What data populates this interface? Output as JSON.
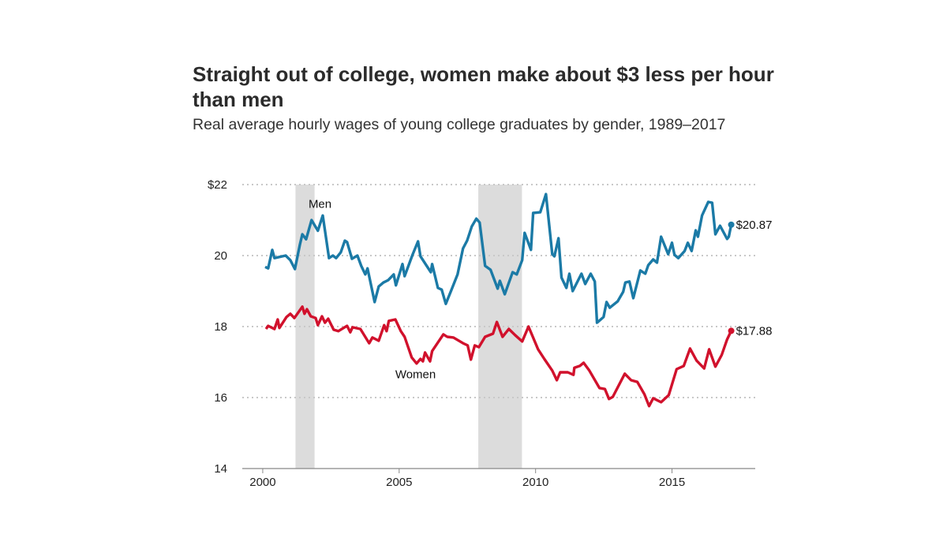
{
  "chart_data": {
    "type": "line",
    "title": "Straight out of college, women make about $3 less per hour than men",
    "subtitle": "Real average hourly wages of young college graduates by gender, 1989–2017",
    "xlabel": "",
    "ylabel": "",
    "xlim": [
      1999.25,
      2018.05
    ],
    "ylim": [
      14,
      22
    ],
    "x_ticks": [
      2000,
      2005,
      2010,
      2015
    ],
    "x_tick_labels": [
      "2000",
      "2005",
      "2010",
      "2015"
    ],
    "y_ticks": [
      14,
      16,
      18,
      20,
      22
    ],
    "y_tick_labels": [
      "14",
      "16",
      "18",
      "20",
      "$22"
    ],
    "grid": "horizontal dotted",
    "recessions": [
      [
        2001.2,
        2001.9
      ],
      [
        2007.9,
        2009.5
      ]
    ],
    "series": [
      {
        "name": "Men",
        "color": "#1b7aa6",
        "end_label": "$20.87",
        "points": [
          [
            2000.09,
            19.68
          ],
          [
            2000.2,
            19.64
          ],
          [
            2000.35,
            20.16
          ],
          [
            2000.43,
            19.93
          ],
          [
            2000.84,
            20.0
          ],
          [
            2001.01,
            19.87
          ],
          [
            2001.18,
            19.62
          ],
          [
            2001.36,
            20.31
          ],
          [
            2001.45,
            20.6
          ],
          [
            2001.59,
            20.46
          ],
          [
            2001.79,
            21.0
          ],
          [
            2002.02,
            20.7
          ],
          [
            2002.2,
            21.13
          ],
          [
            2002.43,
            19.93
          ],
          [
            2002.57,
            20.0
          ],
          [
            2002.69,
            19.93
          ],
          [
            2002.86,
            20.09
          ],
          [
            2003.01,
            20.42
          ],
          [
            2003.09,
            20.38
          ],
          [
            2003.27,
            19.91
          ],
          [
            2003.47,
            20.0
          ],
          [
            2003.61,
            19.71
          ],
          [
            2003.76,
            19.47
          ],
          [
            2003.84,
            19.64
          ],
          [
            2004.1,
            18.69
          ],
          [
            2004.25,
            19.13
          ],
          [
            2004.42,
            19.24
          ],
          [
            2004.6,
            19.31
          ],
          [
            2004.8,
            19.47
          ],
          [
            2004.88,
            19.16
          ],
          [
            2005.12,
            19.76
          ],
          [
            2005.2,
            19.42
          ],
          [
            2005.49,
            20.02
          ],
          [
            2005.69,
            20.4
          ],
          [
            2005.78,
            19.98
          ],
          [
            2006.16,
            19.53
          ],
          [
            2006.21,
            19.76
          ],
          [
            2006.42,
            19.09
          ],
          [
            2006.56,
            19.04
          ],
          [
            2006.71,
            18.64
          ],
          [
            2006.91,
            19.02
          ],
          [
            2007.14,
            19.47
          ],
          [
            2007.34,
            20.2
          ],
          [
            2007.49,
            20.42
          ],
          [
            2007.66,
            20.82
          ],
          [
            2007.83,
            21.04
          ],
          [
            2007.95,
            20.93
          ],
          [
            2008.15,
            19.71
          ],
          [
            2008.35,
            19.6
          ],
          [
            2008.61,
            19.07
          ],
          [
            2008.69,
            19.29
          ],
          [
            2008.87,
            18.91
          ],
          [
            2009.16,
            19.53
          ],
          [
            2009.31,
            19.47
          ],
          [
            2009.51,
            19.87
          ],
          [
            2009.6,
            20.64
          ],
          [
            2009.83,
            20.16
          ],
          [
            2009.91,
            21.2
          ],
          [
            2010.17,
            21.22
          ],
          [
            2010.38,
            21.73
          ],
          [
            2010.61,
            20.04
          ],
          [
            2010.69,
            19.98
          ],
          [
            2010.84,
            20.49
          ],
          [
            2010.95,
            19.38
          ],
          [
            2011.13,
            19.09
          ],
          [
            2011.24,
            19.49
          ],
          [
            2011.36,
            19.0
          ],
          [
            2011.68,
            19.49
          ],
          [
            2011.82,
            19.2
          ],
          [
            2012.02,
            19.49
          ],
          [
            2012.17,
            19.27
          ],
          [
            2012.25,
            18.11
          ],
          [
            2012.49,
            18.27
          ],
          [
            2012.6,
            18.69
          ],
          [
            2012.72,
            18.53
          ],
          [
            2013.01,
            18.71
          ],
          [
            2013.21,
            18.98
          ],
          [
            2013.29,
            19.24
          ],
          [
            2013.44,
            19.27
          ],
          [
            2013.58,
            18.8
          ],
          [
            2013.84,
            19.58
          ],
          [
            2014.02,
            19.49
          ],
          [
            2014.13,
            19.73
          ],
          [
            2014.31,
            19.89
          ],
          [
            2014.45,
            19.8
          ],
          [
            2014.6,
            20.53
          ],
          [
            2014.86,
            20.04
          ],
          [
            2015.0,
            20.36
          ],
          [
            2015.09,
            20.02
          ],
          [
            2015.23,
            19.93
          ],
          [
            2015.46,
            20.13
          ],
          [
            2015.58,
            20.36
          ],
          [
            2015.72,
            20.13
          ],
          [
            2015.87,
            20.71
          ],
          [
            2015.95,
            20.53
          ],
          [
            2016.1,
            21.13
          ],
          [
            2016.33,
            21.51
          ],
          [
            2016.47,
            21.49
          ],
          [
            2016.59,
            20.6
          ],
          [
            2016.76,
            20.84
          ],
          [
            2017.02,
            20.47
          ],
          [
            2017.08,
            20.53
          ],
          [
            2017.17,
            20.87
          ]
        ]
      },
      {
        "name": "Women",
        "color": "#d1112c",
        "end_label": "$17.88",
        "points": [
          [
            2000.12,
            17.93
          ],
          [
            2000.2,
            18.02
          ],
          [
            2000.43,
            17.93
          ],
          [
            2000.55,
            18.2
          ],
          [
            2000.61,
            17.96
          ],
          [
            2000.87,
            18.27
          ],
          [
            2001.01,
            18.36
          ],
          [
            2001.16,
            18.24
          ],
          [
            2001.45,
            18.56
          ],
          [
            2001.53,
            18.36
          ],
          [
            2001.62,
            18.49
          ],
          [
            2001.76,
            18.29
          ],
          [
            2001.94,
            18.24
          ],
          [
            2002.02,
            18.04
          ],
          [
            2002.17,
            18.29
          ],
          [
            2002.28,
            18.11
          ],
          [
            2002.4,
            18.22
          ],
          [
            2002.6,
            17.91
          ],
          [
            2002.77,
            17.87
          ],
          [
            2003.09,
            18.02
          ],
          [
            2003.21,
            17.84
          ],
          [
            2003.29,
            17.98
          ],
          [
            2003.58,
            17.93
          ],
          [
            2003.9,
            17.53
          ],
          [
            2004.02,
            17.69
          ],
          [
            2004.25,
            17.6
          ],
          [
            2004.45,
            18.04
          ],
          [
            2004.54,
            17.87
          ],
          [
            2004.62,
            18.16
          ],
          [
            2004.86,
            18.2
          ],
          [
            2005.06,
            17.87
          ],
          [
            2005.2,
            17.71
          ],
          [
            2005.46,
            17.13
          ],
          [
            2005.64,
            16.96
          ],
          [
            2005.78,
            17.09
          ],
          [
            2005.87,
            17.02
          ],
          [
            2005.95,
            17.27
          ],
          [
            2006.13,
            17.02
          ],
          [
            2006.21,
            17.31
          ],
          [
            2006.62,
            17.78
          ],
          [
            2006.76,
            17.71
          ],
          [
            2006.99,
            17.69
          ],
          [
            2007.34,
            17.53
          ],
          [
            2007.51,
            17.47
          ],
          [
            2007.63,
            17.07
          ],
          [
            2007.77,
            17.47
          ],
          [
            2007.92,
            17.42
          ],
          [
            2008.15,
            17.71
          ],
          [
            2008.44,
            17.8
          ],
          [
            2008.58,
            18.13
          ],
          [
            2008.79,
            17.71
          ],
          [
            2009.02,
            17.93
          ],
          [
            2009.25,
            17.76
          ],
          [
            2009.51,
            17.58
          ],
          [
            2009.74,
            18.0
          ],
          [
            2010.09,
            17.36
          ],
          [
            2010.32,
            17.09
          ],
          [
            2010.61,
            16.76
          ],
          [
            2010.78,
            16.49
          ],
          [
            2010.9,
            16.71
          ],
          [
            2011.18,
            16.71
          ],
          [
            2011.39,
            16.64
          ],
          [
            2011.42,
            16.84
          ],
          [
            2011.62,
            16.89
          ],
          [
            2011.76,
            16.98
          ],
          [
            2011.97,
            16.76
          ],
          [
            2012.34,
            16.27
          ],
          [
            2012.54,
            16.24
          ],
          [
            2012.69,
            15.96
          ],
          [
            2012.83,
            16.02
          ],
          [
            2013.27,
            16.67
          ],
          [
            2013.5,
            16.49
          ],
          [
            2013.73,
            16.44
          ],
          [
            2013.99,
            16.09
          ],
          [
            2014.16,
            15.76
          ],
          [
            2014.31,
            15.98
          ],
          [
            2014.6,
            15.87
          ],
          [
            2014.88,
            16.07
          ],
          [
            2015.17,
            16.8
          ],
          [
            2015.43,
            16.89
          ],
          [
            2015.66,
            17.38
          ],
          [
            2015.9,
            17.04
          ],
          [
            2016.18,
            16.82
          ],
          [
            2016.36,
            17.36
          ],
          [
            2016.59,
            16.87
          ],
          [
            2016.82,
            17.2
          ],
          [
            2017.02,
            17.64
          ],
          [
            2017.17,
            17.88
          ]
        ]
      }
    ],
    "annotations": [
      {
        "text": "Men",
        "x": 2002.1,
        "y": 21.35
      },
      {
        "text": "Women",
        "x": 2005.6,
        "y": 16.55
      }
    ]
  }
}
